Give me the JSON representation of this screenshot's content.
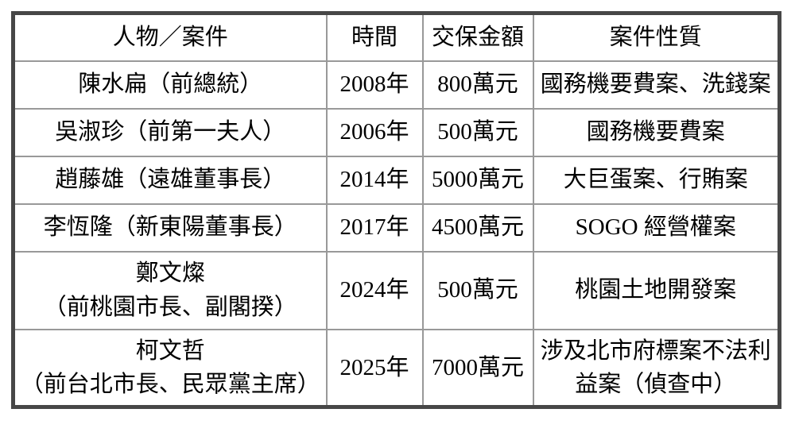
{
  "chart_data": {
    "type": "table",
    "columns": [
      "人物／案件",
      "時間",
      "交保金額",
      "案件性質"
    ],
    "rows": [
      [
        "陳水扁（前總統）",
        "2008年",
        "800萬元",
        "國務機要費案、洗錢案"
      ],
      [
        "吳淑珍（前第一夫人）",
        "2006年",
        "500萬元",
        "國務機要費案"
      ],
      [
        "趙藤雄（遠雄董事長）",
        "2014年",
        "5000萬元",
        "大巨蛋案、行賄案"
      ],
      [
        "李恆隆（新東陽董事長）",
        "2017年",
        "4500萬元",
        "SOGO 經營權案"
      ],
      [
        "鄭文燦\n（前桃園市長、副閣揆）",
        "2024年",
        "500萬元",
        "桃園土地開發案"
      ],
      [
        "柯文哲\n（前台北市長、民眾黨主席）",
        "2025年",
        "7000萬元",
        "涉及北市府標案不法利\n益案（偵查中）"
      ]
    ],
    "layout": {
      "grid": "on",
      "header_row": true
    }
  },
  "colors": {
    "outer_border": "#474747",
    "inner_border": "#999999",
    "text": "#000000",
    "background": "#ffffff"
  }
}
